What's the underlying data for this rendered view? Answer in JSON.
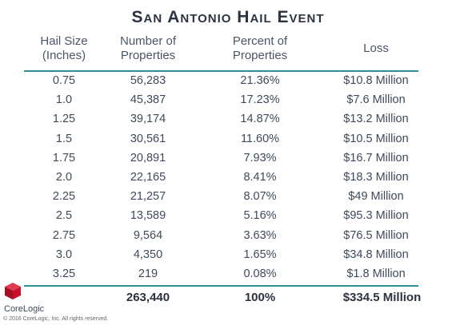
{
  "chart_data": {
    "type": "table",
    "title": "San Antonio Hail Event",
    "columns": [
      "Hail Size (Inches)",
      "Number of Properties",
      "Percent of Properties",
      "Loss"
    ],
    "column_lines": [
      [
        "Hail Size",
        "(Inches)"
      ],
      [
        "Number of",
        "Properties"
      ],
      [
        "Percent of",
        "Properties"
      ],
      [
        "Loss"
      ]
    ],
    "rows": [
      [
        "0.75",
        "56,283",
        "21.36%",
        "$10.8 Million"
      ],
      [
        "1.0",
        "45,387",
        "17.23%",
        "$7.6 Million"
      ],
      [
        "1.25",
        "39,174",
        "14.87%",
        "$13.2 Million"
      ],
      [
        "1.5",
        "30,561",
        "11.60%",
        "$10.5 Million"
      ],
      [
        "1.75",
        "20,891",
        "7.93%",
        "$16.7 Million"
      ],
      [
        "2.0",
        "22,165",
        "8.41%",
        "$18.3 Million"
      ],
      [
        "2.25",
        "21,257",
        "8.07%",
        "$49 Million"
      ],
      [
        "2.5",
        "13,589",
        "5.16%",
        "$95.3 Million"
      ],
      [
        "2.75",
        "9,564",
        "3.63%",
        "$76.5 Million"
      ],
      [
        "3.0",
        "4,350",
        "1.65%",
        "$34.8 Million"
      ],
      [
        "3.25",
        "219",
        "0.08%",
        "$1.8 Million"
      ]
    ],
    "totals": [
      "",
      "263,440",
      "100%",
      "$334.5 Million"
    ]
  },
  "branding": {
    "logo_text": "CoreLogic",
    "copyright": "© 2016 CoreLogic, Inc. All rights reserved.",
    "colors": {
      "accent": "#2e8f99",
      "logo_red": "#c8102e",
      "text": "#3e4a5a"
    }
  }
}
